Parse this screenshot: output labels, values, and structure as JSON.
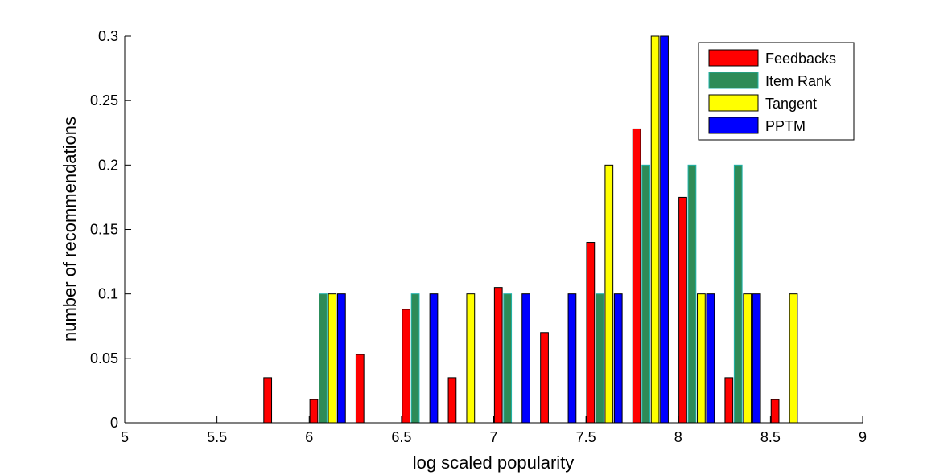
{
  "chart_data": {
    "type": "bar",
    "title": "",
    "xlabel": "log scaled popularity",
    "ylabel": "number of recommendations",
    "xlim": [
      5,
      9
    ],
    "ylim": [
      0,
      0.3
    ],
    "xticks": [
      "5",
      "5.5",
      "6",
      "6.5",
      "7",
      "7.5",
      "8",
      "8.5",
      "9"
    ],
    "yticks": [
      "0",
      "0.05",
      "0.1",
      "0.15",
      "0.2",
      "0.25",
      "0.3"
    ],
    "grid": false,
    "legend_position": "top-right",
    "x": [
      5.1,
      5.35,
      5.6,
      5.85,
      6.1,
      6.35,
      6.6,
      6.85,
      7.1,
      7.35,
      7.6,
      7.85,
      8.1,
      8.35,
      8.6,
      8.85
    ],
    "series": [
      {
        "name": "Feedbacks",
        "color": "#ff0000",
        "values": [
          0,
          0,
          0,
          0.035,
          0.018,
          0.053,
          0.088,
          0.035,
          0.105,
          0.07,
          0.14,
          0.228,
          0.175,
          0.035,
          0.018,
          0
        ]
      },
      {
        "name": "Item Rank",
        "color": "#2e8b57",
        "edge": "#20b2aa",
        "values": [
          0,
          0,
          0,
          0,
          0.1,
          0,
          0.1,
          0,
          0.1,
          0,
          0.1,
          0.2,
          0.2,
          0.2,
          0,
          0
        ]
      },
      {
        "name": "Tangent",
        "color": "#ffff00",
        "values": [
          0,
          0,
          0,
          0,
          0.1,
          0,
          0,
          0.1,
          0,
          0,
          0.2,
          0.3,
          0.1,
          0.1,
          0.1,
          0
        ]
      },
      {
        "name": "PPTM",
        "color": "#0000ff",
        "values": [
          0,
          0,
          0,
          0,
          0.1,
          0,
          0.1,
          0,
          0.1,
          0.1,
          0.1,
          0.3,
          0.1,
          0.1,
          0,
          0
        ]
      }
    ]
  }
}
